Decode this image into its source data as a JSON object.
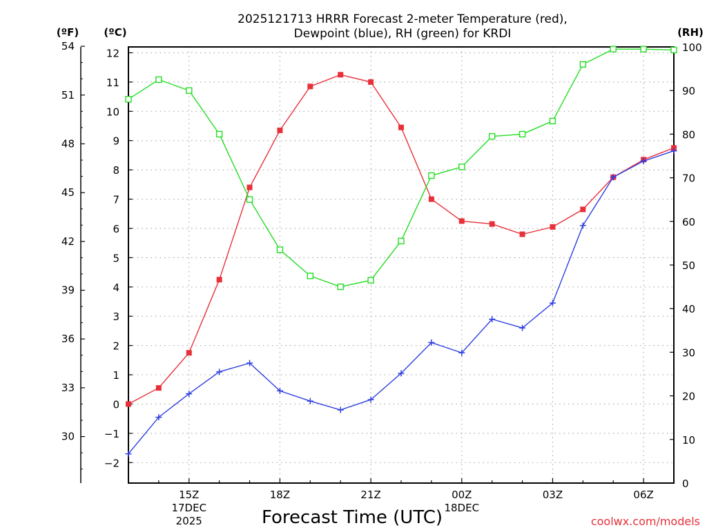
{
  "chart_data": {
    "type": "line",
    "title_line1": "2025121713 HRRR Forecast 2-meter Temperature (red),",
    "title_line2": "Dewpoint (blue), RH (green) for KRDI",
    "xlabel": "Forecast Time (UTC)",
    "credit": "coolwx.com/models",
    "left_outer_unit": "(ºF)",
    "left_inner_unit": "(ºC)",
    "right_unit": "(RH)",
    "x_hours": [
      13,
      14,
      15,
      16,
      17,
      18,
      19,
      20,
      21,
      22,
      23,
      24,
      25,
      26,
      27,
      28,
      29,
      30,
      31
    ],
    "xlim": [
      13,
      31
    ],
    "x_ticks": [
      {
        "hour": 15,
        "label": "15Z",
        "label2": "17DEC",
        "label3": "2025"
      },
      {
        "hour": 18,
        "label": "18Z"
      },
      {
        "hour": 21,
        "label": "21Z"
      },
      {
        "hour": 24,
        "label": "00Z",
        "label2": "18DEC"
      },
      {
        "hour": 27,
        "label": "03Z"
      },
      {
        "hour": 30,
        "label": "06Z"
      }
    ],
    "ylim_c": [
      -2.7,
      12.2
    ],
    "y_ticks_c": [
      -2,
      -1,
      0,
      1,
      2,
      3,
      4,
      5,
      6,
      7,
      8,
      9,
      10,
      11,
      12
    ],
    "y_ticks_f": [
      30,
      33,
      36,
      39,
      42,
      45,
      48,
      51,
      54
    ],
    "ylim_rh": [
      0,
      100
    ],
    "y_ticks_rh": [
      0,
      10,
      20,
      30,
      40,
      50,
      60,
      70,
      80,
      90,
      100
    ],
    "series": [
      {
        "name": "Temperature",
        "axis": "C",
        "color": "#e8303a",
        "marker": "filled-square",
        "values": [
          0.0,
          0.55,
          1.75,
          4.25,
          7.4,
          9.35,
          10.85,
          11.25,
          11.0,
          9.45,
          7.0,
          6.25,
          6.15,
          5.8,
          6.05,
          6.65,
          7.75,
          8.35,
          8.75
        ]
      },
      {
        "name": "Dewpoint",
        "axis": "C",
        "color": "#2d3ee0",
        "marker": "plus",
        "values": [
          -1.7,
          -0.45,
          0.35,
          1.1,
          1.4,
          0.45,
          0.1,
          -0.2,
          0.15,
          1.05,
          2.1,
          1.75,
          2.9,
          2.6,
          3.45,
          6.1,
          7.75,
          8.3,
          8.65
        ]
      },
      {
        "name": "RH",
        "axis": "RH",
        "color": "#22dd22",
        "marker": "open-square",
        "values": [
          88,
          92.5,
          90,
          80,
          65,
          53.5,
          47.5,
          45,
          46.5,
          55.5,
          70.5,
          72.5,
          79.5,
          80,
          83,
          96,
          99.5,
          99.5,
          99.3
        ]
      }
    ]
  }
}
